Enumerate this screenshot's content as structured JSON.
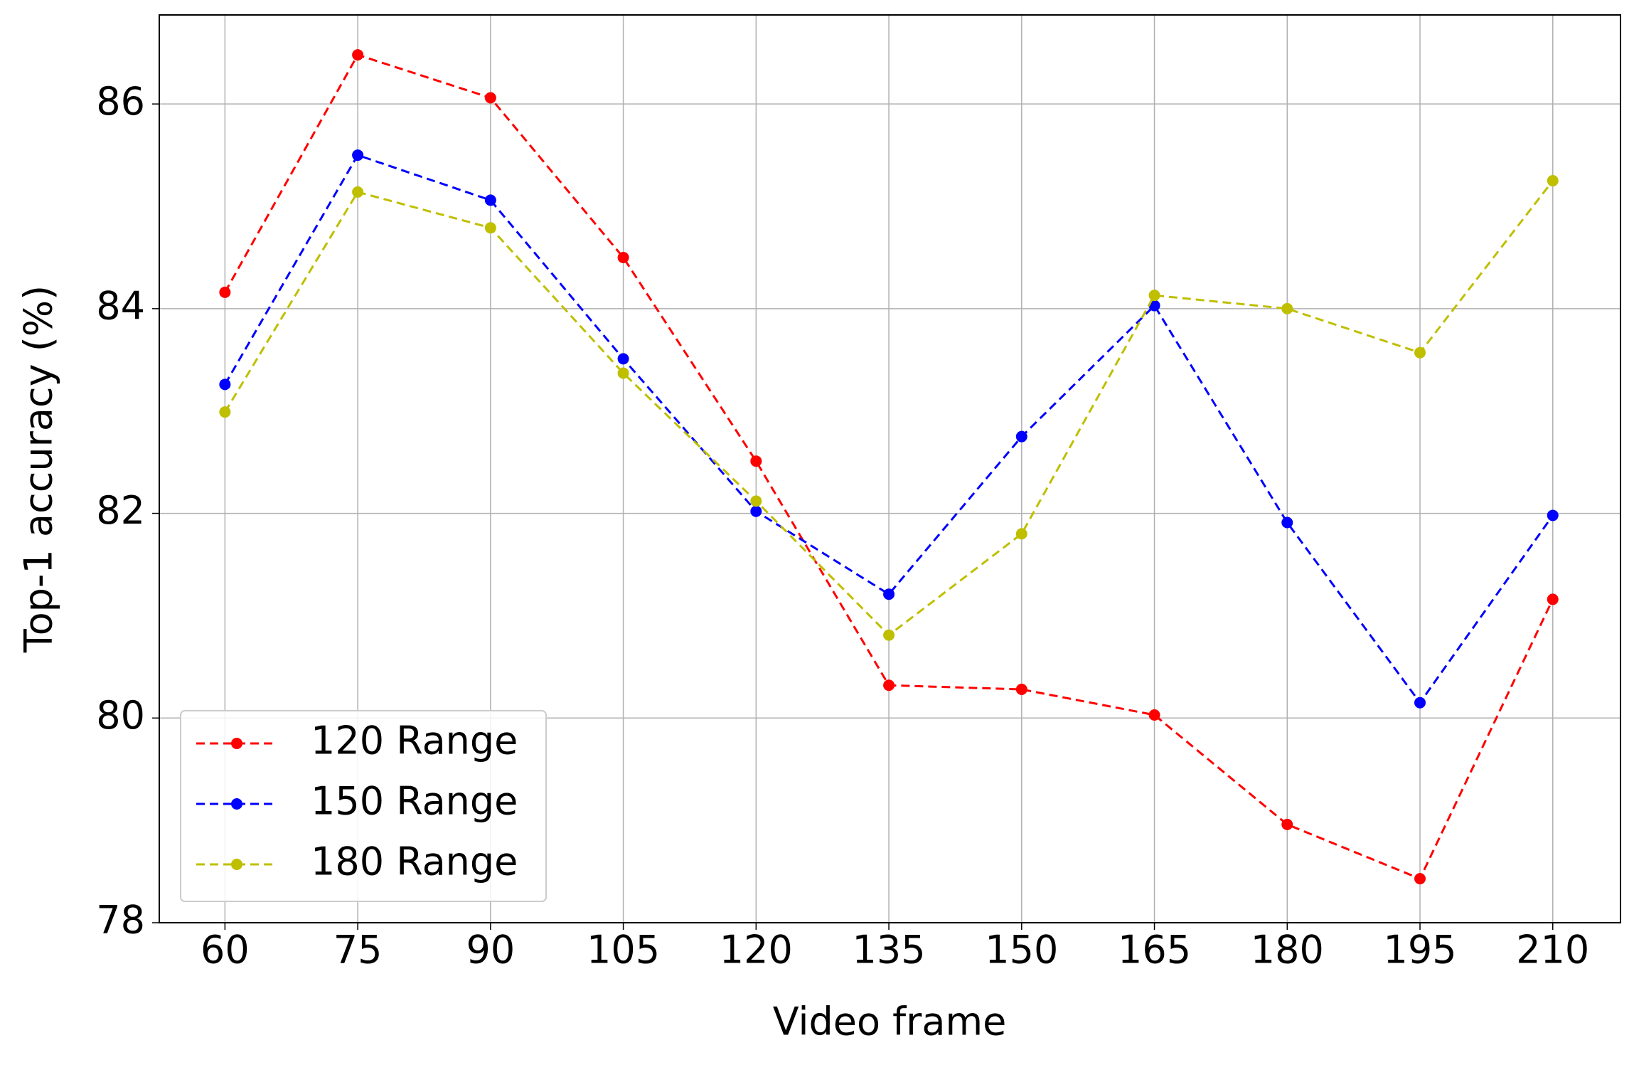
{
  "chart_data": {
    "type": "line",
    "x_label": "Video frame",
    "y_label": "Top-1 accuracy (%)",
    "x": [
      60,
      75,
      90,
      105,
      120,
      135,
      150,
      165,
      180,
      195,
      210
    ],
    "series": [
      {
        "name": "120 Range",
        "color": "#ff0000",
        "values": [
          84.16,
          86.48,
          86.06,
          84.5,
          82.51,
          80.32,
          80.28,
          80.03,
          78.96,
          78.43,
          81.16
        ]
      },
      {
        "name": "150 Range",
        "color": "#0000ff",
        "values": [
          83.26,
          85.5,
          85.06,
          83.51,
          82.02,
          81.21,
          82.75,
          84.03,
          81.91,
          80.15,
          81.98
        ]
      },
      {
        "name": "180 Range",
        "color": "#bfbf00",
        "values": [
          82.99,
          85.14,
          84.79,
          83.37,
          82.12,
          80.81,
          81.8,
          84.13,
          84.0,
          83.57,
          85.25
        ]
      }
    ],
    "xlim": [
      52.58,
      217.65
    ],
    "ylim": [
      78,
      86.87
    ],
    "xticks": [
      60,
      75,
      90,
      105,
      120,
      135,
      150,
      165,
      180,
      195,
      210
    ],
    "yticks": [
      78,
      80,
      82,
      84,
      86
    ],
    "grid": true,
    "legend": "lower left",
    "line_style": "dashed"
  }
}
